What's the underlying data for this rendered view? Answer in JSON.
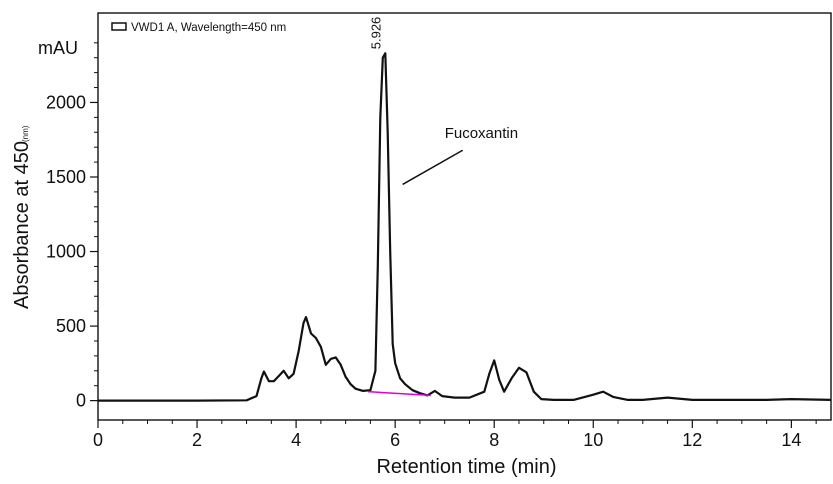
{
  "chart_data": {
    "type": "line",
    "title": "",
    "xlabel": "Retention time (min)",
    "ylabel": "Absorbance at 450",
    "ylabel_unit": "(nm)",
    "y_unit_label": "mAU",
    "xlim": [
      0,
      14.8
    ],
    "ylim": [
      -130,
      2600
    ],
    "x_ticks": [
      0,
      2,
      4,
      6,
      8,
      10,
      12,
      14
    ],
    "y_ticks": [
      0,
      500,
      1000,
      1500,
      2000
    ],
    "grid": false,
    "legend": {
      "position": "top-left",
      "entries": [
        "VWD1 A, Wavelength=450 nm"
      ]
    },
    "series": [
      {
        "name": "VWD1 A, Wavelength=450 nm",
        "color": "#111111",
        "x": [
          0,
          1,
          2,
          3,
          3.2,
          3.3,
          3.35,
          3.45,
          3.55,
          3.65,
          3.75,
          3.85,
          3.95,
          4.05,
          4.15,
          4.2,
          4.3,
          4.4,
          4.5,
          4.6,
          4.7,
          4.8,
          4.9,
          5.0,
          5.1,
          5.2,
          5.35,
          5.5,
          5.6,
          5.65,
          5.7,
          5.75,
          5.8,
          5.85,
          5.9,
          5.95,
          6.0,
          6.1,
          6.2,
          6.35,
          6.5,
          6.65,
          6.8,
          6.95,
          7.2,
          7.5,
          7.8,
          7.9,
          8.0,
          8.1,
          8.2,
          8.35,
          8.5,
          8.65,
          8.8,
          8.95,
          9.2,
          9.6,
          10.0,
          10.2,
          10.4,
          10.7,
          11.0,
          11.5,
          12.0,
          12.5,
          13.0,
          13.5,
          14.0,
          14.8
        ],
        "y": [
          0,
          0,
          0,
          2,
          30,
          150,
          195,
          130,
          130,
          165,
          200,
          150,
          180,
          330,
          520,
          560,
          450,
          420,
          360,
          240,
          280,
          290,
          240,
          160,
          110,
          80,
          65,
          70,
          200,
          900,
          1900,
          2300,
          2330,
          1800,
          1000,
          380,
          250,
          150,
          110,
          70,
          50,
          35,
          65,
          30,
          20,
          20,
          60,
          180,
          270,
          140,
          60,
          150,
          220,
          190,
          60,
          10,
          5,
          5,
          40,
          60,
          25,
          5,
          5,
          20,
          5,
          5,
          5,
          5,
          10,
          5
        ]
      }
    ],
    "baseline_segment": {
      "color": "#e000d8",
      "x": [
        5.45,
        6.72
      ],
      "y": [
        60,
        35
      ]
    },
    "annotations": [
      {
        "text": "5.926",
        "x": 5.78,
        "y": 2330,
        "type": "peak-label"
      },
      {
        "text": "Fucoxantin",
        "x": 7.0,
        "y": 1760,
        "type": "callout",
        "pointer_to": [
          6.15,
          1450
        ]
      }
    ]
  }
}
